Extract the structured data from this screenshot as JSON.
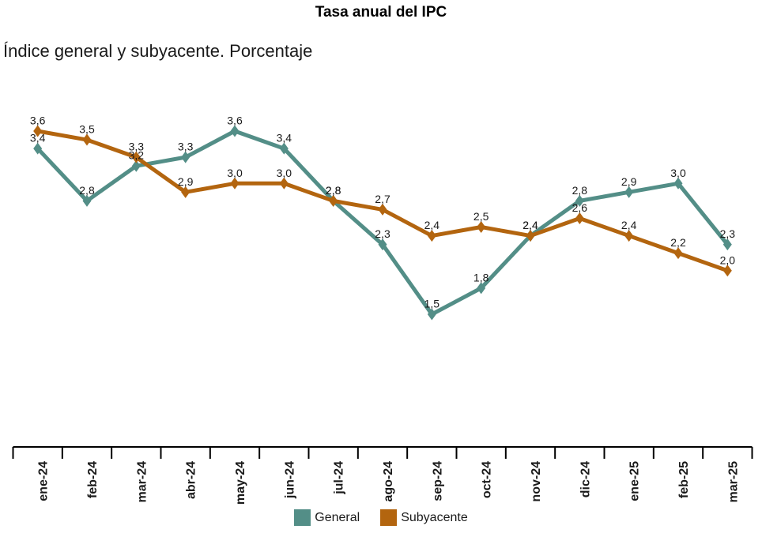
{
  "title": "Tasa anual del IPC",
  "subtitle": "Índice general y subyacente. Porcentaje",
  "chart_data": {
    "type": "line",
    "categories": [
      "ene-24",
      "feb-24",
      "mar-24",
      "abr-24",
      "may-24",
      "jun-24",
      "jul-24",
      "ago-24",
      "sep-24",
      "oct-24",
      "nov-24",
      "dic-24",
      "ene-25",
      "feb-25",
      "mar-25"
    ],
    "series": [
      {
        "name": "General",
        "color": "#538E87",
        "values": [
          3.4,
          2.8,
          3.2,
          3.3,
          3.6,
          3.4,
          2.8,
          2.3,
          1.5,
          1.8,
          2.4,
          2.8,
          2.9,
          3.0,
          2.3
        ]
      },
      {
        "name": "Subyacente",
        "color": "#B3650F",
        "values": [
          3.6,
          3.5,
          3.3,
          2.9,
          3.0,
          3.0,
          2.8,
          2.7,
          2.4,
          2.5,
          2.4,
          2.6,
          2.4,
          2.2,
          2.0
        ]
      }
    ],
    "marker": "diamond",
    "value_labels": true,
    "decimal_separator": ",",
    "ylim": [
      1.5,
      3.6
    ],
    "grid": false,
    "y_axis_visible": false,
    "legend_position": "bottom"
  },
  "legend": {
    "items": [
      {
        "label": "General",
        "color": "#538E87"
      },
      {
        "label": "Subyacente",
        "color": "#B3650F"
      }
    ]
  },
  "colors": {
    "background": "#FFFFFF",
    "text": "#1A1A1A",
    "axis": "#000000",
    "general": "#538E87",
    "subyacente": "#B3650F"
  }
}
